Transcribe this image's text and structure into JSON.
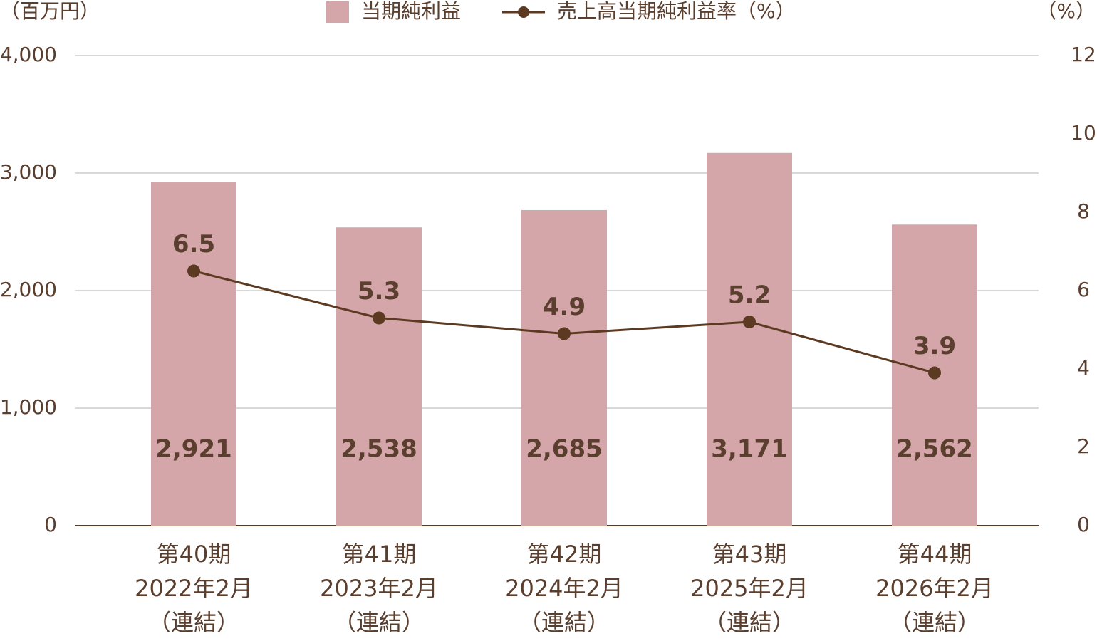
{
  "chart_data": {
    "type": "bar-line",
    "y_label": "（百万円）",
    "y2_label": "（%）",
    "categories": [
      [
        "第40期",
        "2022年2月",
        "（連結）"
      ],
      [
        "第41期",
        "2023年2月",
        "（連結）"
      ],
      [
        "第42期",
        "2024年2月",
        "（連結）"
      ],
      [
        "第43期",
        "2025年2月",
        "（連結）"
      ],
      [
        "第44期",
        "2026年2月",
        "（連結）"
      ]
    ],
    "series": [
      {
        "name": "当期純利益",
        "type": "bar",
        "color": "#d4a5a9",
        "values": [
          2921,
          2538,
          2685,
          3171,
          2562
        ],
        "value_labels": [
          "2,921",
          "2,538",
          "2,685",
          "3,171",
          "2,562"
        ]
      },
      {
        "name": "売上高当期純利益率（%）",
        "type": "line",
        "axis": "y2",
        "color": "#5c3a21",
        "values": [
          6.5,
          5.3,
          4.9,
          5.2,
          3.9
        ]
      }
    ],
    "ylim": [
      0,
      4000
    ],
    "yticks": [
      0,
      {
        "value": 1000,
        "label": "1,000"
      },
      {
        "value": 2000,
        "label": "2,000"
      },
      {
        "value": 3000,
        "label": "3,000"
      },
      {
        "value": 4000,
        "label": "4,000"
      }
    ],
    "y2lim": [
      0,
      12
    ],
    "y2ticks": [
      0,
      2,
      4,
      6,
      8,
      10,
      12
    ],
    "grid": true
  }
}
